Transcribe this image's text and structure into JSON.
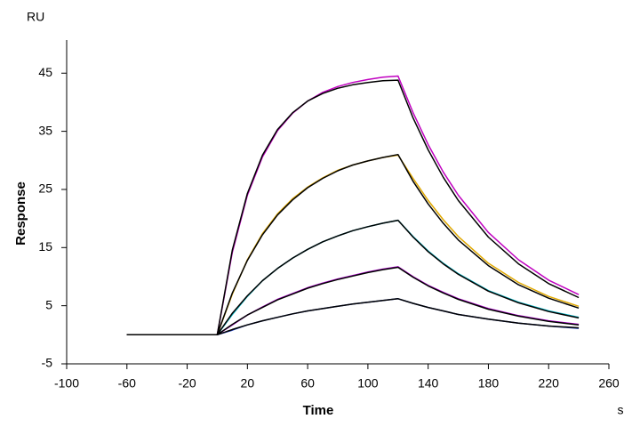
{
  "chart_data": {
    "type": "line",
    "y_unit": "RU",
    "ylabel": "Response",
    "xlabel": "Time",
    "x_unit": "s",
    "x": [
      -60,
      -40,
      -20,
      0,
      10,
      20,
      30,
      40,
      50,
      60,
      70,
      80,
      90,
      100,
      110,
      120,
      130,
      140,
      150,
      160,
      180,
      200,
      220,
      240
    ],
    "xlim": [
      -100,
      260
    ],
    "xticks": [
      -100,
      -60,
      -20,
      20,
      60,
      100,
      140,
      180,
      220,
      260
    ],
    "ylim": [
      -5,
      50.7
    ],
    "yticks": [
      -5,
      5,
      15,
      25,
      35,
      45
    ],
    "series": [
      {
        "color": "#c000c0",
        "values": [
          0,
          0,
          0,
          0,
          14.2,
          24.0,
          30.6,
          35.1,
          38.1,
          40.2,
          41.7,
          42.7,
          43.4,
          43.9,
          44.3,
          44.5,
          38.2,
          32.7,
          28.0,
          24.0,
          17.6,
          12.9,
          9.4,
          6.9
        ]
      },
      {
        "color": "#e0a800",
        "values": [
          0,
          0,
          0,
          0,
          7.0,
          12.9,
          17.4,
          20.8,
          23.4,
          25.4,
          27.0,
          28.3,
          29.2,
          29.9,
          30.5,
          30.9,
          26.9,
          23.1,
          19.8,
          16.9,
          12.3,
          9.0,
          6.6,
          4.9
        ]
      },
      {
        "color": "#00b8c8",
        "values": [
          0,
          0,
          0,
          0,
          3.5,
          6.6,
          9.3,
          11.4,
          13.2,
          14.7,
          16.0,
          17.0,
          17.9,
          18.6,
          19.2,
          19.7,
          16.9,
          14.4,
          12.3,
          10.5,
          7.6,
          5.6,
          4.1,
          3.0
        ]
      },
      {
        "color": "#b000d0",
        "values": [
          0,
          0,
          0,
          0,
          1.7,
          3.4,
          4.8,
          6.1,
          7.1,
          8.1,
          8.9,
          9.6,
          10.2,
          10.8,
          11.3,
          11.7,
          10.0,
          8.5,
          7.3,
          6.2,
          4.5,
          3.3,
          2.4,
          1.8
        ]
      },
      {
        "color": "#2040c0",
        "values": [
          0,
          0,
          0,
          0,
          0.8,
          1.7,
          2.4,
          3.0,
          3.6,
          4.1,
          4.5,
          4.9,
          5.3,
          5.6,
          5.9,
          6.2,
          5.4,
          4.7,
          4.1,
          3.5,
          2.7,
          2.0,
          1.5,
          1.1
        ]
      },
      {
        "color": "#000000",
        "values": [
          0,
          0,
          0,
          0,
          14.6,
          24.3,
          30.9,
          35.3,
          38.2,
          40.2,
          41.5,
          42.4,
          43.0,
          43.4,
          43.7,
          43.8,
          37.3,
          31.8,
          27.1,
          23.1,
          16.8,
          12.2,
          8.8,
          6.4
        ]
      },
      {
        "color": "#000000",
        "values": [
          0,
          0,
          0,
          0,
          7.2,
          12.8,
          17.2,
          20.6,
          23.2,
          25.3,
          26.9,
          28.2,
          29.2,
          29.9,
          30.5,
          31.0,
          26.4,
          22.5,
          19.2,
          16.3,
          11.9,
          8.6,
          6.3,
          4.6
        ]
      },
      {
        "color": "#000000",
        "values": [
          0,
          0,
          0,
          0,
          3.7,
          6.7,
          9.3,
          11.4,
          13.2,
          14.7,
          16.0,
          17.0,
          17.9,
          18.6,
          19.2,
          19.7,
          16.8,
          14.3,
          12.2,
          10.4,
          7.5,
          5.5,
          4.0,
          2.9
        ]
      },
      {
        "color": "#000000",
        "values": [
          0,
          0,
          0,
          0,
          1.8,
          3.4,
          4.7,
          6.0,
          7.0,
          8.0,
          8.8,
          9.5,
          10.1,
          10.7,
          11.2,
          11.6,
          9.9,
          8.4,
          7.2,
          6.1,
          4.4,
          3.2,
          2.3,
          1.7
        ]
      },
      {
        "color": "#000000",
        "values": [
          0,
          0,
          0,
          0,
          0.9,
          1.7,
          2.4,
          3.0,
          3.6,
          4.1,
          4.5,
          4.9,
          5.3,
          5.6,
          5.9,
          6.2,
          5.4,
          4.7,
          4.1,
          3.5,
          2.7,
          2.0,
          1.5,
          1.2
        ]
      }
    ]
  }
}
